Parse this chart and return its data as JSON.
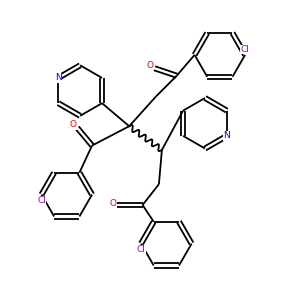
{
  "bg_color": "#ffffff",
  "bond_color": "#000000",
  "N_color": "#0000ff",
  "O_color": "#ff0000",
  "Cl_color": "#9900bb",
  "lw": 1.3,
  "figsize": [
    3.0,
    3.0
  ],
  "dpi": 100,
  "xlim": [
    0,
    10
  ],
  "ylim": [
    0,
    10
  ],
  "ring_r": 0.85,
  "dbo": 0.07
}
